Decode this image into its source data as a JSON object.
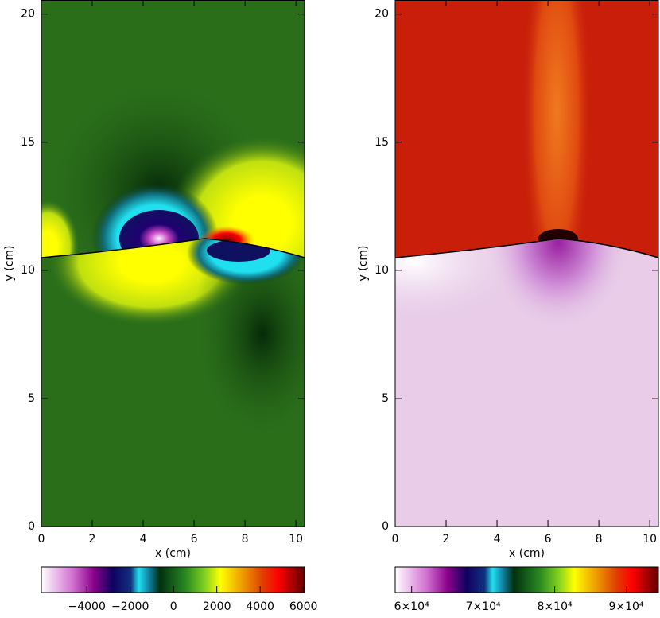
{
  "chart_data": [
    {
      "type": "heatmap",
      "xlabel": "x (cm)",
      "ylabel": "y (cm)",
      "xlim": [
        0,
        10.34
      ],
      "ylim": [
        0,
        20.55
      ],
      "xticks": [
        0,
        2,
        4,
        6,
        8,
        10
      ],
      "yticks": [
        0,
        5,
        10,
        15,
        20
      ],
      "colorbar": {
        "lim": [
          -6100,
          6050
        ],
        "ticks": [
          {
            "value": -4000,
            "label": "−4000"
          },
          {
            "value": -2000,
            "label": "−2000"
          },
          0,
          2000,
          4000,
          6000
        ]
      }
    },
    {
      "type": "heatmap",
      "xlabel": "x (cm)",
      "ylabel": "y (cm)",
      "xlim": [
        0,
        10.34
      ],
      "ylim": [
        0,
        20.55
      ],
      "xticks": [
        0,
        2,
        4,
        6,
        8,
        10
      ],
      "yticks": [
        0,
        5,
        10,
        15,
        20
      ],
      "colorbar": {
        "lim": [
          57700,
          94500
        ],
        "ticks": [
          {
            "value": 60000,
            "label": "6×10⁴"
          },
          {
            "value": 70000,
            "label": "7×10⁴"
          },
          {
            "value": 80000,
            "label": "8×10⁴"
          },
          {
            "value": 90000,
            "label": "9×10⁴"
          }
        ]
      }
    }
  ]
}
